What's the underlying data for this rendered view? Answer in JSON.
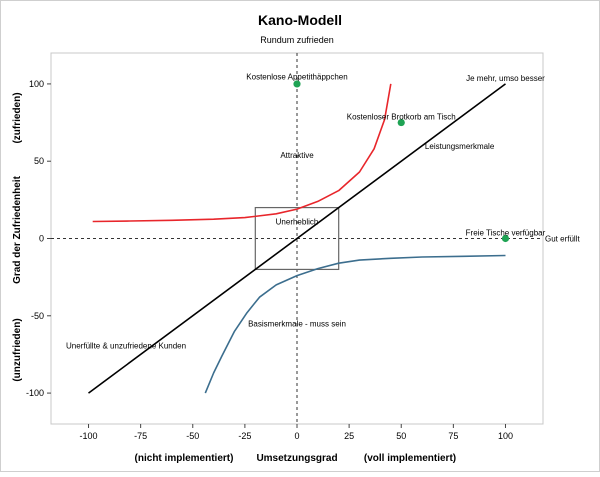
{
  "chart_data": {
    "type": "line",
    "title": "Kano-Modell",
    "subtitle": "Rundum zufrieden",
    "xlabel": "Umsetzungsgrad",
    "xlabel_left": "(nicht implementiert)",
    "xlabel_right": "(voll implementiert)",
    "ylabel": "Grad der Zufriedenheit",
    "ylabel_top": "(zufrieden)",
    "ylabel_bottom": "(unzufrieden)",
    "xlim": [
      -118,
      118
    ],
    "ylim": [
      -120,
      120
    ],
    "x_ticks": [
      -100,
      -75,
      -50,
      -25,
      0,
      25,
      50,
      75,
      100
    ],
    "y_ticks": [
      100,
      50,
      0,
      -50,
      -100
    ],
    "grid": false,
    "reference_lines": {
      "x": 0,
      "y": 0,
      "style": "dashed",
      "y_label": "Gut erfüllt"
    },
    "series": [
      {
        "name": "Leistungsmerkmale",
        "color": "#000000",
        "points": [
          [
            -100,
            -100
          ],
          [
            100,
            100
          ]
        ]
      },
      {
        "name": "Attraktive",
        "color": "#e8262b",
        "points": [
          [
            -98,
            11
          ],
          [
            -80,
            11.3
          ],
          [
            -60,
            11.8
          ],
          [
            -40,
            12.5
          ],
          [
            -25,
            13.5
          ],
          [
            -10,
            16
          ],
          [
            0,
            19
          ],
          [
            10,
            24
          ],
          [
            20,
            31
          ],
          [
            30,
            43
          ],
          [
            37,
            58
          ],
          [
            42,
            77
          ],
          [
            45,
            100
          ]
        ]
      },
      {
        "name": "Basismerkmale - muss sein",
        "color": "#3c6e8e",
        "points": [
          [
            -44,
            -100
          ],
          [
            -40,
            -87
          ],
          [
            -36,
            -76
          ],
          [
            -30,
            -60
          ],
          [
            -24,
            -48
          ],
          [
            -18,
            -38
          ],
          [
            -10,
            -30
          ],
          [
            0,
            -24
          ],
          [
            10,
            -19.5
          ],
          [
            20,
            -16
          ],
          [
            30,
            -14
          ],
          [
            45,
            -12.8
          ],
          [
            60,
            -12
          ],
          [
            80,
            -11.5
          ],
          [
            100,
            -11
          ]
        ]
      }
    ],
    "points": [
      {
        "name": "Kostenlose Appetithäppchen",
        "x": 0,
        "y": 100,
        "color": "#1fa354"
      },
      {
        "name": "Kostenloser Brotkorb am Tisch",
        "x": 50,
        "y": 75,
        "color": "#1fa354"
      },
      {
        "name": "Freie Tische verfügbar",
        "x": 100,
        "y": 0,
        "color": "#1fa354"
      }
    ],
    "region": {
      "name": "Unerheblich",
      "x": [
        -20,
        20
      ],
      "y": [
        -20,
        20
      ]
    },
    "annotations": [
      {
        "text": "Kostenlose Appetithäppchen",
        "x": 0,
        "y": 103,
        "anchor": "middle"
      },
      {
        "text": "Kostenloser Brotkorb am Tisch",
        "x": 50,
        "y": 77,
        "anchor": "middle"
      },
      {
        "text": "Je mehr, umso besser",
        "x": 100,
        "y": 102,
        "anchor": "middle"
      },
      {
        "text": "Leistungsmerkmale",
        "x": 78,
        "y": 58,
        "anchor": "middle"
      },
      {
        "text": "Attraktive",
        "x": 0,
        "y": 52,
        "anchor": "middle"
      },
      {
        "text": "Unerheblich",
        "x": 0,
        "y": 9,
        "anchor": "middle"
      },
      {
        "text": "Freie Tische verfügbar",
        "x": 100,
        "y": 2,
        "anchor": "middle"
      },
      {
        "text": "Basismerkmale - muss sein",
        "x": 0,
        "y": -57,
        "anchor": "middle"
      },
      {
        "text": "Unerfüllte & unzufriedene Kunden",
        "x": -82,
        "y": -71,
        "anchor": "middle"
      }
    ]
  }
}
